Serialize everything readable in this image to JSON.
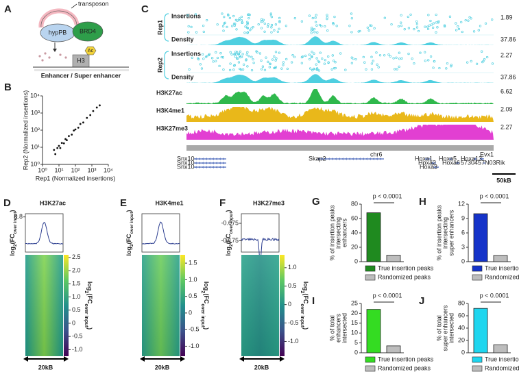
{
  "panel_a": {
    "label": "A",
    "transposon": "transposon",
    "enzyme": "hypPB",
    "reader": "BRD4",
    "mark": "Ac",
    "histone": "H3",
    "caption": "Enhancer / Super enhancer"
  },
  "panel_c": {
    "label": "C",
    "replicates": [
      {
        "name": "Rep1",
        "insertions": "Insertions",
        "insertions_max": 1.89,
        "density": "Density",
        "density_max": 37.86
      },
      {
        "name": "Rep2",
        "insertions": "Insertions",
        "insertions_max": 2.27,
        "density": "Density",
        "density_max": 37.86
      }
    ],
    "tracks": [
      {
        "name": "H3K27ac",
        "color": "#2fb84c",
        "max": 6.62
      },
      {
        "name": "H3K4me1",
        "color": "#e9b81a",
        "max": 2.09
      },
      {
        "name": "H3K27me3",
        "color": "#e23fd2",
        "max": 2.27
      }
    ],
    "chromosome": "chr6",
    "genes": [
      "Snx10",
      "Snx10",
      "Snx10",
      "Skap2",
      "Hoxa1",
      "Hoxa2",
      "Hoxa3",
      "Hoxa5",
      "Hoxa6",
      "Hoxa13",
      "5730457N03Rik",
      "Evx1"
    ],
    "scale": "50kB"
  },
  "heatmaps": [
    {
      "label": "D",
      "title": "H3K27ac",
      "title_color": "#66c26e",
      "ylabel": [
        "log",
        "2",
        "(FC",
        "over input",
        ")"
      ],
      "ylim": [
        0.25,
        0.85
      ],
      "yticks": [
        0.8
      ],
      "clim": [
        -1.25,
        2.6
      ],
      "cticks": [
        2.5,
        {
          "value": 2.0,
          "label": "2.0"
        },
        1.5,
        {
          "value": 1.0,
          "label": "1.0"
        },
        0.5,
        0,
        -0.5,
        {
          "value": -1.0,
          "label": "-1.0"
        }
      ],
      "clabel": [
        "log",
        "2",
        "(FC",
        "over input",
        ")"
      ],
      "scale": "20kB"
    },
    {
      "label": "E",
      "title": "H3K4me1",
      "title_color": "#e7c23c",
      "ylabel": [
        "log",
        "2",
        "(FC",
        "over input",
        ")"
      ],
      "ylim": [
        0,
        1
      ],
      "yticks": [],
      "clim": [
        -1.3,
        1.75
      ],
      "cticks": [
        1.5,
        {
          "value": 1.0,
          "label": "1.0"
        },
        0.5,
        0,
        -0.5,
        {
          "value": -1.0,
          "label": "-1.0"
        }
      ],
      "clabel": [
        "log",
        "2",
        "(FC",
        "over input",
        ")"
      ],
      "scale": "20kB"
    },
    {
      "label": "F",
      "title": "H3K27me3",
      "title_color": "#d35fd3",
      "ylabel": [
        "log",
        "2",
        "(FC",
        "over input",
        ")"
      ],
      "ylim": [
        -0.24,
        -0.02
      ],
      "yticks": [
        -0.075,
        -0.175
      ],
      "clim": [
        -1.4,
        1.35
      ],
      "cticks": [
        {
          "value": 1.0,
          "label": "1.0"
        },
        0.5,
        0,
        -0.5,
        {
          "value": -1.0,
          "label": "-1.0"
        }
      ],
      "clabel": [
        "log",
        "2",
        "(FC",
        "over input",
        ")"
      ],
      "scale": "20kB"
    }
  ],
  "chart_data": [
    {
      "type": "scatter",
      "panel_label": "B",
      "xlabel": "Rep1 (Normalized insertions)",
      "ylabel": "Rep2 (Normalized insertions)",
      "log_scale": true,
      "color": "#111111",
      "xlim": [
        1,
        10000
      ],
      "ylim": [
        1,
        10000
      ],
      "xticks": [
        {
          "value": 1,
          "label": "10⁰"
        },
        {
          "value": 10,
          "label": "10¹"
        },
        {
          "value": 100,
          "label": "10²"
        },
        {
          "value": 1000,
          "label": "10³"
        },
        {
          "value": 10000,
          "label": "10⁴"
        }
      ],
      "yticks": [
        {
          "value": 1,
          "label": "10⁰"
        },
        {
          "value": 10,
          "label": "10¹"
        },
        {
          "value": 100,
          "label": "10²"
        },
        {
          "value": 1000,
          "label": "10³"
        },
        {
          "value": 10000,
          "label": "10⁴"
        }
      ],
      "x": [
        5,
        6,
        8,
        10,
        12,
        15,
        20,
        25,
        30,
        40,
        60,
        80,
        100,
        150,
        200,
        300,
        500,
        800,
        1200,
        2000,
        3000
      ],
      "values": [
        7,
        4,
        9,
        12,
        9,
        18,
        17,
        30,
        26,
        45,
        55,
        95,
        110,
        140,
        230,
        280,
        520,
        760,
        1300,
        2100,
        2800
      ]
    },
    {
      "type": "bar",
      "panel_label": "G",
      "ylabel": [
        "% of insertion peaks",
        "intersecting",
        "enhancers"
      ],
      "annotation": "p < 0.0001",
      "ylim": [
        0,
        80
      ],
      "yticks": [
        0,
        20,
        40,
        60,
        80
      ],
      "series": [
        {
          "name": "True insertion peaks",
          "color": "#1f8a1f",
          "values": [
            68
          ]
        },
        {
          "name": "Randomized peaks",
          "color": "#bdbdbd",
          "values": [
            9
          ]
        }
      ]
    },
    {
      "type": "bar",
      "panel_label": "H",
      "ylabel": [
        "% of insertion peaks",
        "intersecting",
        "super enhancers"
      ],
      "annotation": "p < 0.0001",
      "ylim": [
        0,
        12
      ],
      "yticks": [
        0,
        3,
        6,
        9,
        12
      ],
      "series": [
        {
          "name": "True insertion peaks",
          "color": "#1533c9",
          "values": [
            10
          ]
        },
        {
          "name": "Randomized peaks",
          "color": "#bdbdbd",
          "values": [
            1.3
          ]
        }
      ]
    },
    {
      "type": "bar",
      "panel_label": "I",
      "ylabel": [
        "% of total",
        "enhancers",
        "intersected"
      ],
      "annotation": "p < 0.0001",
      "ylim": [
        0,
        25
      ],
      "yticks": [
        0,
        5,
        10,
        15,
        20,
        25
      ],
      "series": [
        {
          "name": "True insertion peaks",
          "color": "#34dc22",
          "values": [
            22
          ]
        },
        {
          "name": "Randomized peaks",
          "color": "#bdbdbd",
          "values": [
            3.5
          ]
        }
      ]
    },
    {
      "type": "bar",
      "panel_label": "J",
      "ylabel": [
        "% of total",
        "super enhancers",
        "intersected"
      ],
      "annotation": "p < 0.0001",
      "ylim": [
        0,
        80
      ],
      "yticks": [
        0,
        20,
        40,
        60,
        80
      ],
      "series": [
        {
          "name": "True insertion peaks",
          "color": "#1fd6ef",
          "values": [
            72
          ]
        },
        {
          "name": "Randomized peaks",
          "color": "#bdbdbd",
          "values": [
            13
          ]
        }
      ]
    }
  ]
}
